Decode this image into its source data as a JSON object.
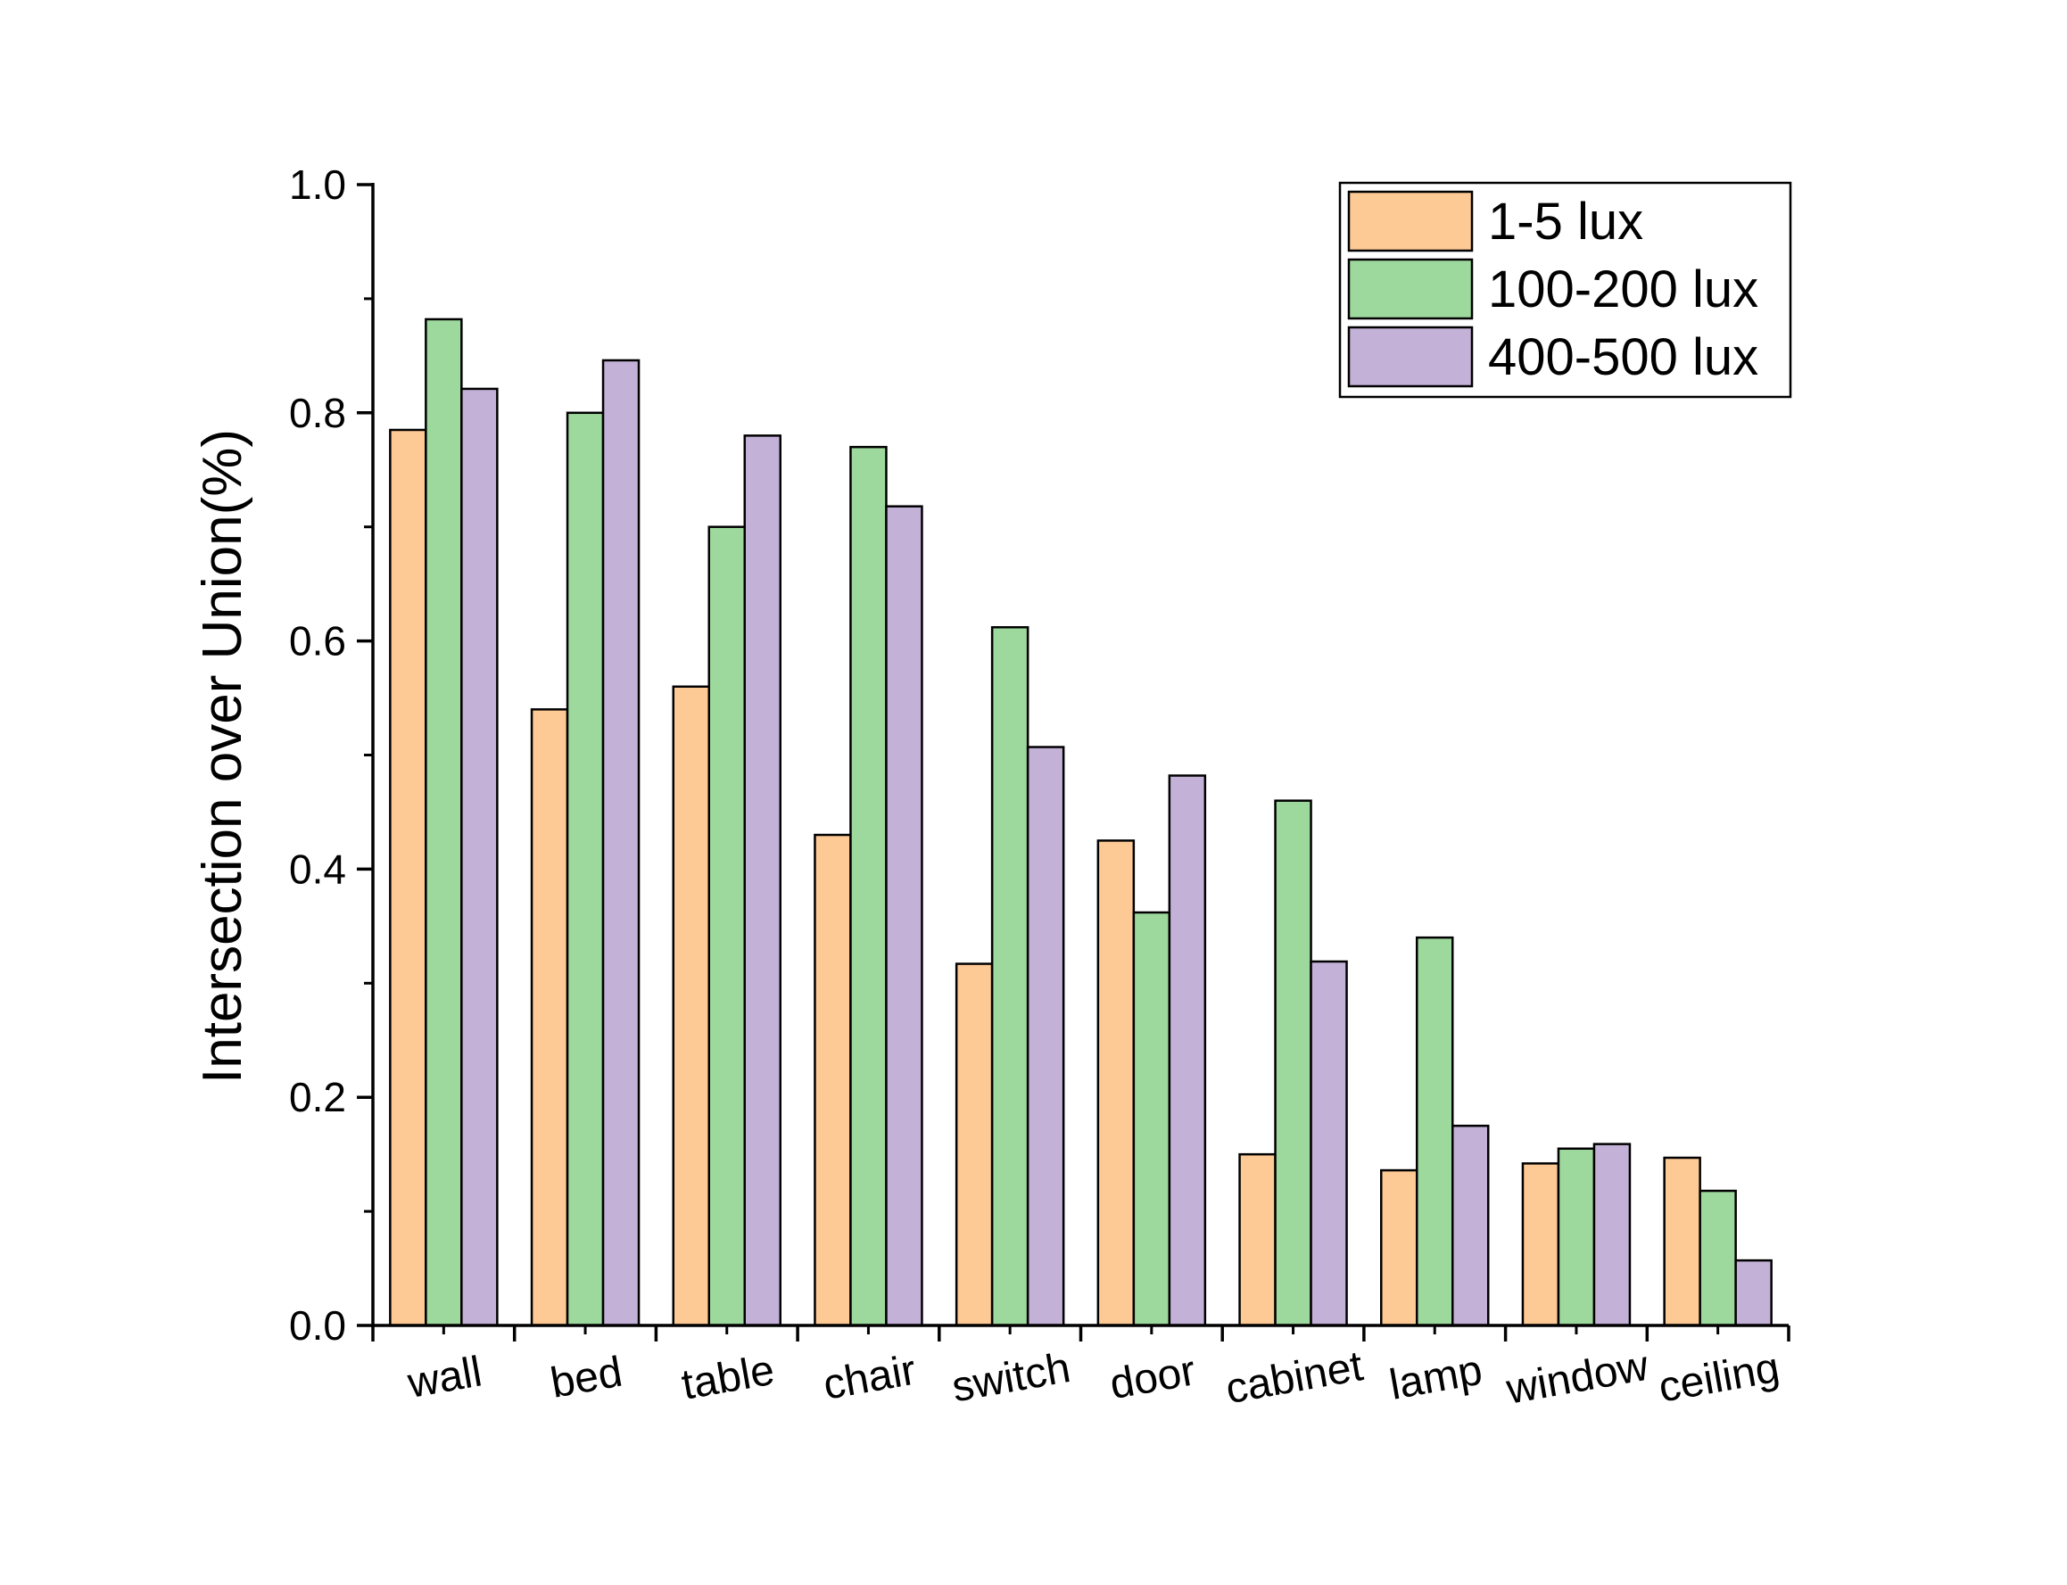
{
  "chart_data": {
    "type": "bar",
    "title": "",
    "xlabel": "",
    "ylabel": "Intersection over Union(%)",
    "ylim": [
      0,
      1.0
    ],
    "yticks": [
      0.0,
      0.2,
      0.4,
      0.6,
      0.8,
      1.0
    ],
    "ytick_labels": [
      "0.0",
      "0.2",
      "0.4",
      "0.6",
      "0.8",
      "1.0"
    ],
    "grid": false,
    "legend_position": "top-right",
    "categories": [
      "wall",
      "bed",
      "table",
      "chair",
      "switch",
      "door",
      "cabinet",
      "lamp",
      "window",
      "ceiling"
    ],
    "series": [
      {
        "name": "1-5 lux",
        "color": "#FDC994",
        "values": [
          0.785,
          0.54,
          0.56,
          0.43,
          0.317,
          0.425,
          0.15,
          0.136,
          0.142,
          0.147
        ]
      },
      {
        "name": "100-200 lux",
        "color": "#9DD89D",
        "values": [
          0.882,
          0.8,
          0.7,
          0.77,
          0.612,
          0.362,
          0.46,
          0.34,
          0.155,
          0.118
        ]
      },
      {
        "name": "400-500 lux",
        "color": "#C3B1D7",
        "values": [
          0.821,
          0.846,
          0.78,
          0.718,
          0.507,
          0.482,
          0.319,
          0.175,
          0.159,
          0.057
        ]
      }
    ]
  }
}
